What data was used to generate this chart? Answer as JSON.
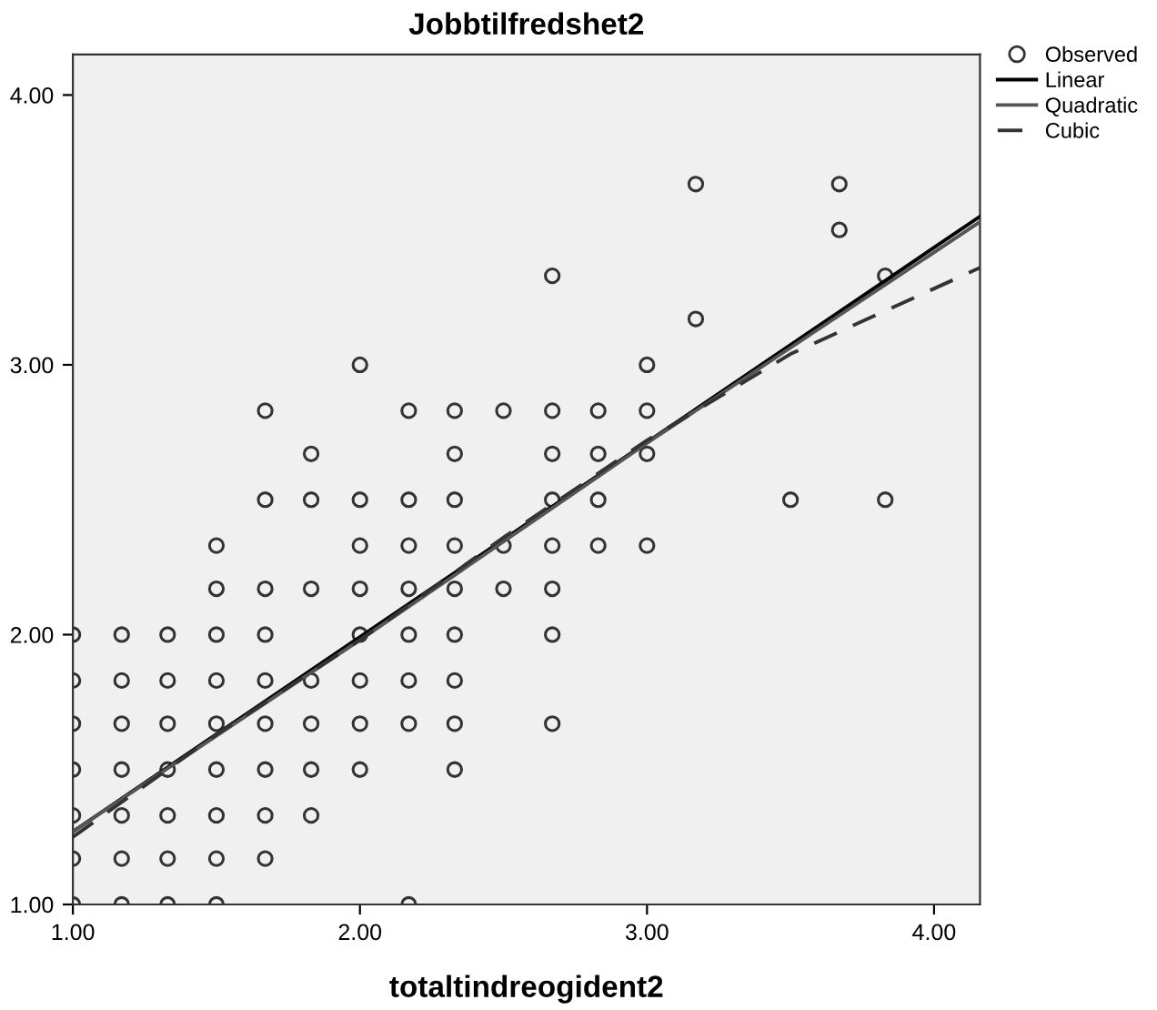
{
  "chart_data": {
    "type": "scatter",
    "title": "Jobbtilfredshet2",
    "xlabel": "totaltindreogident2",
    "xlim": [
      1,
      4.16
    ],
    "ylim": [
      1,
      4.15
    ],
    "xticks": [
      {
        "value": 1,
        "label": "1.00"
      },
      {
        "value": 2,
        "label": "2.00"
      },
      {
        "value": 3,
        "label": "3.00"
      },
      {
        "value": 4,
        "label": "4.00"
      }
    ],
    "yticks": [
      {
        "value": 1,
        "label": "1.00"
      },
      {
        "value": 2,
        "label": "2.00"
      },
      {
        "value": 3,
        "label": "3.00"
      },
      {
        "value": 4,
        "label": "4.00"
      }
    ],
    "grid": false,
    "legend": "top right",
    "series": [
      {
        "name": "Observed",
        "marker": "circle",
        "color": "#333333",
        "x": [
          1,
          1,
          1,
          1,
          1,
          1,
          1,
          1.17,
          1.17,
          1.17,
          1.17,
          1.17,
          1.17,
          1.17,
          1.33,
          1.33,
          1.33,
          1.33,
          1.33,
          1.33,
          1.33,
          1.5,
          1.5,
          1.5,
          1.5,
          1.5,
          1.5,
          1.5,
          1.5,
          1.5,
          1.67,
          1.67,
          1.67,
          1.67,
          1.67,
          1.67,
          1.67,
          1.67,
          1.67,
          1.83,
          1.83,
          1.83,
          1.83,
          1.83,
          1.83,
          1.83,
          2,
          2,
          2,
          2,
          2,
          2,
          2,
          2,
          2.17,
          2.17,
          2.17,
          2.17,
          2.17,
          2.17,
          2.17,
          2.17,
          2.33,
          2.33,
          2.33,
          2.33,
          2.33,
          2.33,
          2.33,
          2.33,
          2.33,
          2.5,
          2.5,
          2.5,
          2.67,
          2.67,
          2.67,
          2.67,
          2.67,
          2.67,
          2.67,
          2.67,
          2.83,
          2.83,
          2.83,
          2.83,
          3,
          3,
          3,
          3,
          3.17,
          3.17,
          3.5,
          3.67,
          3.67,
          3.83,
          3.83
        ],
        "values": [
          1,
          1.17,
          1.33,
          1.5,
          1.67,
          1.83,
          2,
          1,
          1.17,
          1.33,
          1.5,
          1.67,
          1.83,
          2,
          1,
          1.17,
          1.33,
          1.5,
          1.67,
          1.83,
          2,
          1,
          1.17,
          1.33,
          1.5,
          1.67,
          1.83,
          2,
          2.17,
          2.33,
          1.17,
          1.33,
          1.5,
          1.67,
          1.83,
          2,
          2.17,
          2.5,
          2.83,
          1.33,
          1.5,
          1.67,
          1.83,
          2.17,
          2.5,
          2.67,
          1.5,
          1.67,
          1.83,
          2,
          2.17,
          2.33,
          2.5,
          3,
          1,
          1.67,
          1.83,
          2,
          2.17,
          2.33,
          2.5,
          2.83,
          1.5,
          1.67,
          1.83,
          2,
          2.17,
          2.33,
          2.5,
          2.67,
          2.83,
          2.17,
          2.33,
          2.83,
          1.67,
          2,
          2.17,
          2.33,
          2.5,
          2.67,
          2.83,
          3.33,
          2.33,
          2.5,
          2.67,
          2.83,
          2.33,
          2.67,
          2.83,
          3,
          3.17,
          3.67,
          2.5,
          3.5,
          3.67,
          2.5,
          3.33
        ]
      },
      {
        "name": "Linear",
        "type": "line",
        "line_style": "solid",
        "color": "#000000",
        "x": [
          1,
          4.16
        ],
        "values": [
          1.27,
          3.55
        ]
      },
      {
        "name": "Quadratic",
        "type": "line",
        "line_style": "solid",
        "color": "#555555",
        "x": [
          1,
          2,
          3,
          4.16
        ],
        "values": [
          1.27,
          1.98,
          2.71,
          3.53
        ]
      },
      {
        "name": "Cubic",
        "type": "line",
        "line_style": "dashed",
        "color": "#333333",
        "x": [
          1,
          1.5,
          2,
          2.5,
          3,
          3.5,
          4.16
        ],
        "values": [
          1.25,
          1.63,
          1.98,
          2.36,
          2.72,
          3.04,
          3.36
        ]
      }
    ]
  }
}
